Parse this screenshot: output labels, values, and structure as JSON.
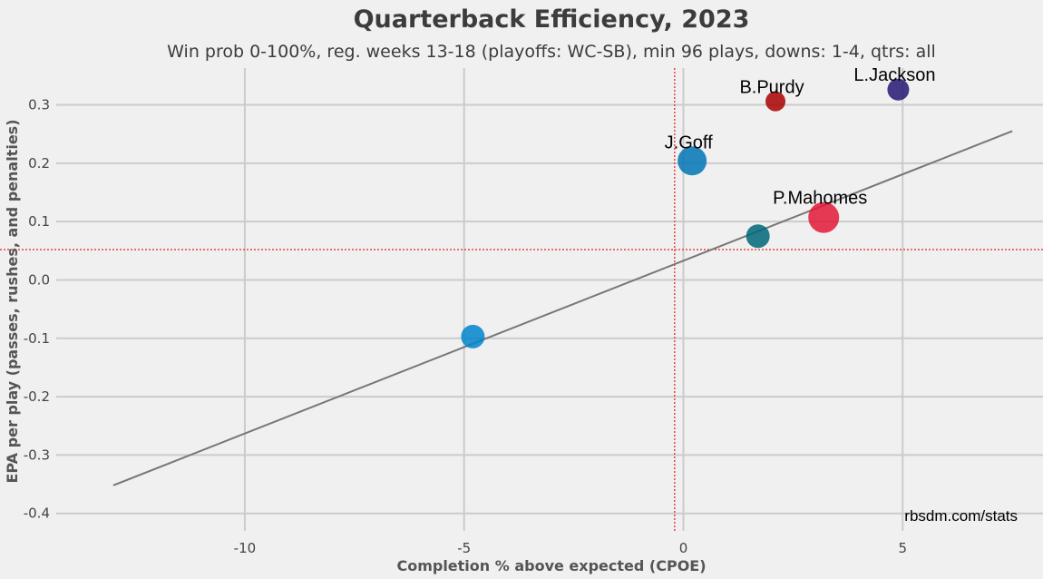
{
  "chart_data": {
    "type": "scatter",
    "title": "Quarterback Efficiency, 2023",
    "subtitle": "Win prob 0-100%, reg. weeks 13-18 (playoffs: WC-SB), min 96 plays, downs: 1-4, qtrs: all",
    "xlabel": "Completion % above expected (CPOE)",
    "ylabel": "EPA per play (passes, rushes, and penalties)",
    "xlim": [
      -14.3,
      8.2
    ],
    "ylim": [
      -0.43,
      0.363
    ],
    "x_ticks": [
      -10,
      -5,
      0,
      5
    ],
    "x_tick_labels": [
      "-10",
      "-5",
      "0",
      "5"
    ],
    "y_ticks": [
      -0.4,
      -0.3,
      -0.2,
      -0.1,
      0.0,
      0.1,
      0.2,
      0.3
    ],
    "y_tick_labels": [
      "-0.4",
      "-0.3",
      "-0.2",
      "-0.1",
      "0.0",
      "0.1",
      "0.2",
      "0.3"
    ],
    "grid": true,
    "reference_lines": {
      "x": -0.2,
      "y": 0.052,
      "color": "#e8423c"
    },
    "trend_line": {
      "x": [
        -13,
        7.5
      ],
      "y": [
        -0.352,
        0.255
      ],
      "color": "#777777"
    },
    "credit": "rbsdm.com/stats",
    "points": [
      {
        "label": "L.Jackson",
        "x": 4.9,
        "y": 0.326,
        "size": 12,
        "color": "#241773"
      },
      {
        "label": "B.Purdy",
        "x": 2.1,
        "y": 0.306,
        "size": 11,
        "color": "#aa0000"
      },
      {
        "label": "J.Goff",
        "x": 0.2,
        "y": 0.204,
        "size": 16,
        "color": "#0076b6"
      },
      {
        "label": "P.Mahomes",
        "x": 3.2,
        "y": 0.107,
        "size": 17,
        "color": "#e31837"
      },
      {
        "label": "",
        "x": 1.7,
        "y": 0.075,
        "size": 13,
        "color": "#006778"
      },
      {
        "label": "",
        "x": -4.8,
        "y": -0.097,
        "size": 13,
        "color": "#0085ca"
      }
    ]
  }
}
